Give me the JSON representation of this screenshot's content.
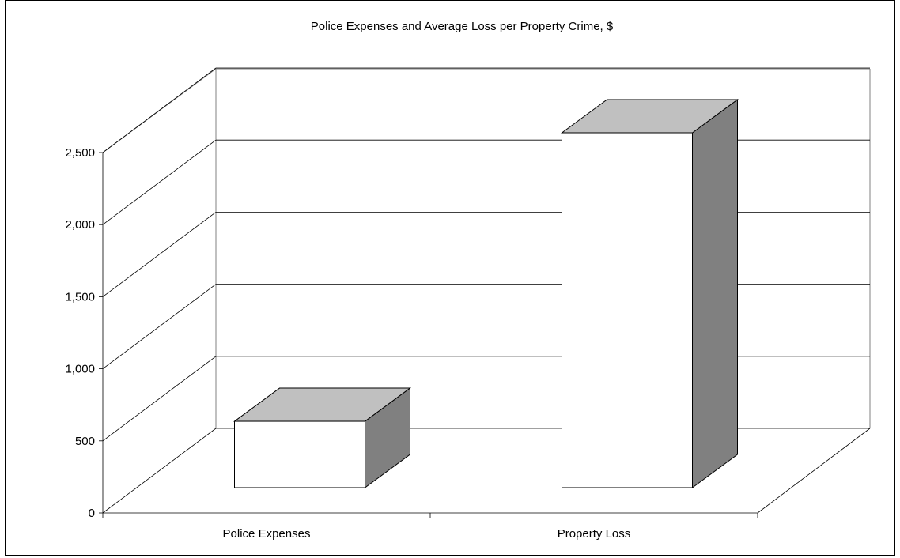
{
  "chart_data": {
    "type": "bar",
    "title": "Police Expenses and Average  Loss per Property Crime, $",
    "xlabel": "",
    "ylabel": "",
    "categories": [
      "Police Expenses",
      "Property Loss"
    ],
    "values": [
      460,
      2460
    ],
    "ylim": [
      0,
      2500
    ],
    "yticks": [
      "0",
      "500",
      "1,000",
      "1,500",
      "2,000",
      "2,500"
    ],
    "grid": true,
    "legend": "none",
    "style": "3d-column",
    "colors": {
      "front": "#ffffff",
      "top": "#c0c0c0",
      "side": "#808080",
      "gridline": "#000000",
      "frame": "#808080"
    }
  }
}
